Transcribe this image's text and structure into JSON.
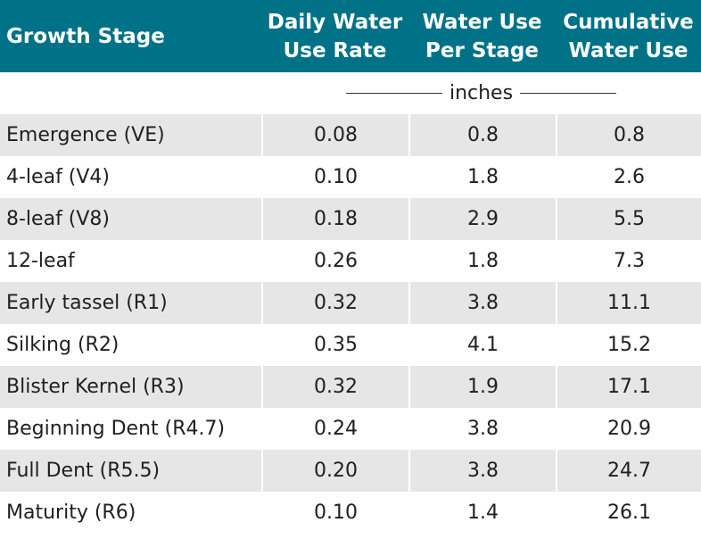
{
  "header": {
    "growth_stage": "Growth Stage",
    "daily_rate": [
      "Daily Water",
      "Use Rate"
    ],
    "per_stage": [
      "Water Use",
      "Per Stage"
    ],
    "cumulative": [
      "Cumulative",
      "Water Use"
    ]
  },
  "units": "inches",
  "rows": [
    {
      "stage": "Emergence (VE)",
      "daily": "0.08",
      "per_stage": "0.8",
      "cumulative": "0.8"
    },
    {
      "stage": "4-leaf (V4)",
      "daily": "0.10",
      "per_stage": "1.8",
      "cumulative": "2.6"
    },
    {
      "stage": "8-leaf (V8)",
      "daily": "0.18",
      "per_stage": "2.9",
      "cumulative": "5.5"
    },
    {
      "stage": "12-leaf",
      "daily": "0.26",
      "per_stage": "1.8",
      "cumulative": "7.3"
    },
    {
      "stage": "Early tassel (R1)",
      "daily": "0.32",
      "per_stage": "3.8",
      "cumulative": "11.1"
    },
    {
      "stage": "Silking (R2)",
      "daily": "0.35",
      "per_stage": "4.1",
      "cumulative": "15.2"
    },
    {
      "stage": "Blister Kernel (R3)",
      "daily": "0.32",
      "per_stage": "1.9",
      "cumulative": "17.1"
    },
    {
      "stage": "Beginning Dent (R4.7)",
      "daily": "0.24",
      "per_stage": "3.8",
      "cumulative": "20.9"
    },
    {
      "stage": "Full Dent (R5.5)",
      "daily": "0.20",
      "per_stage": "3.8",
      "cumulative": "24.7"
    },
    {
      "stage": "Maturity (R6)",
      "daily": "0.10",
      "per_stage": "1.4",
      "cumulative": "26.1"
    }
  ],
  "colors": {
    "header_bg": "#007288",
    "shaded_row": "#e6e6e6",
    "plain_row": "#ffffff"
  }
}
